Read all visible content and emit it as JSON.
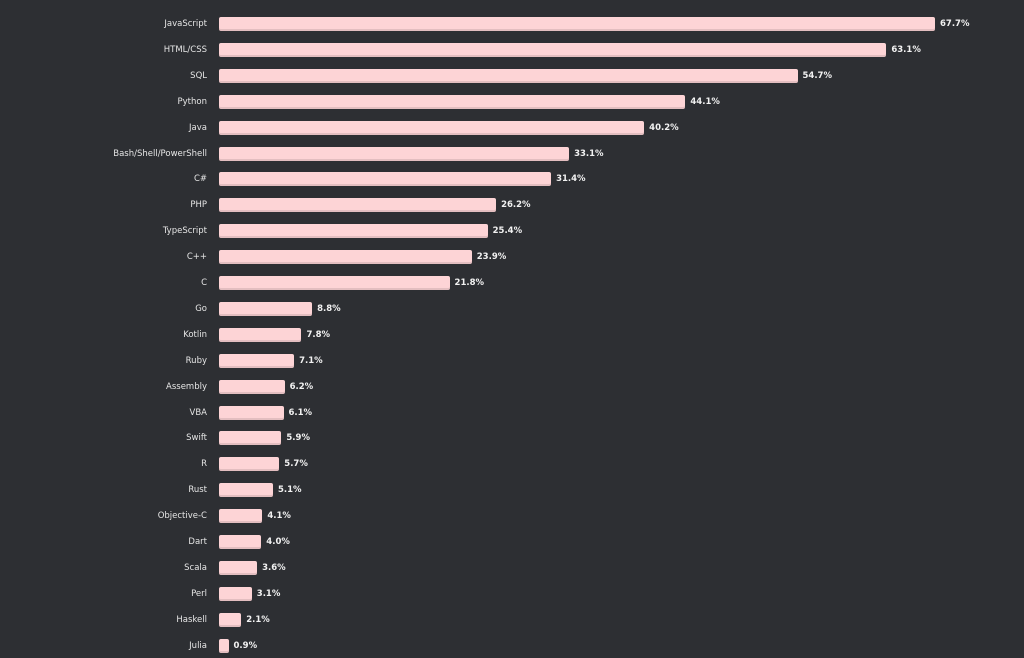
{
  "chart_data": {
    "type": "bar",
    "orientation": "horizontal",
    "title": "",
    "xlabel": "",
    "ylabel": "",
    "xlim": [
      0,
      67.7
    ],
    "bar_color": "#fdd4d6",
    "background": "#2d2f33",
    "categories": [
      "JavaScript",
      "HTML/CSS",
      "SQL",
      "Python",
      "Java",
      "Bash/Shell/PowerShell",
      "C#",
      "PHP",
      "TypeScript",
      "C++",
      "C",
      "Go",
      "Kotlin",
      "Ruby",
      "Assembly",
      "VBA",
      "Swift",
      "R",
      "Rust",
      "Objective-C",
      "Dart",
      "Scala",
      "Perl",
      "Haskell",
      "Julia"
    ],
    "values": [
      67.7,
      63.1,
      54.7,
      44.1,
      40.2,
      33.1,
      31.4,
      26.2,
      25.4,
      23.9,
      21.8,
      8.8,
      7.8,
      7.1,
      6.2,
      6.1,
      5.9,
      5.7,
      5.1,
      4.1,
      4.0,
      3.6,
      3.1,
      2.1,
      0.9
    ],
    "value_labels": [
      "67.7%",
      "63.1%",
      "54.7%",
      "44.1%",
      "40.2%",
      "33.1%",
      "31.4%",
      "26.2%",
      "25.4%",
      "23.9%",
      "21.8%",
      "8.8%",
      "7.8%",
      "7.1%",
      "6.2%",
      "6.1%",
      "5.9%",
      "5.7%",
      "5.1%",
      "4.1%",
      "4.0%",
      "3.6%",
      "3.1%",
      "2.1%",
      "0.9%"
    ]
  }
}
